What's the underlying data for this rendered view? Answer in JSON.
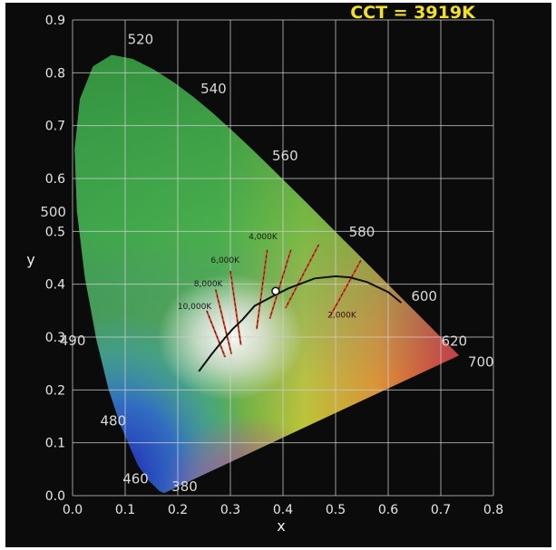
{
  "chart_data": {
    "type": "scatter",
    "title": "CCT = 3919K",
    "xlabel": "x",
    "ylabel": "y",
    "xlim": [
      0.0,
      0.8
    ],
    "ylim": [
      0.0,
      0.9
    ],
    "grid": true,
    "x_ticks": [
      "0.0",
      "0.1",
      "0.2",
      "0.3",
      "0.4",
      "0.5",
      "0.6",
      "0.7",
      "0.8"
    ],
    "y_ticks": [
      "0.0",
      "0.1",
      "0.2",
      "0.3",
      "0.4",
      "0.5",
      "0.6",
      "0.7",
      "0.8",
      "0.9"
    ],
    "spectral_locus_labels": [
      {
        "label": "380",
        "x": 0.175,
        "y": 0.005
      },
      {
        "label": "460",
        "x": 0.144,
        "y": 0.03
      },
      {
        "label": "480",
        "x": 0.091,
        "y": 0.133
      },
      {
        "label": "490",
        "x": 0.045,
        "y": 0.295
      },
      {
        "label": "500",
        "x": 0.008,
        "y": 0.538
      },
      {
        "label": "520",
        "x": 0.074,
        "y": 0.834
      },
      {
        "label": "540",
        "x": 0.23,
        "y": 0.754
      },
      {
        "label": "560",
        "x": 0.373,
        "y": 0.624
      },
      {
        "label": "580",
        "x": 0.512,
        "y": 0.487
      },
      {
        "label": "600",
        "x": 0.627,
        "y": 0.372
      },
      {
        "label": "620",
        "x": 0.691,
        "y": 0.308
      },
      {
        "label": "700",
        "x": 0.735,
        "y": 0.265
      }
    ],
    "planckian_locus": [
      {
        "x": 0.24,
        "y": 0.235
      },
      {
        "x": 0.264,
        "y": 0.267
      },
      {
        "x": 0.281,
        "y": 0.288
      },
      {
        "x": 0.291,
        "y": 0.3
      },
      {
        "x": 0.305,
        "y": 0.316
      },
      {
        "x": 0.323,
        "y": 0.333
      },
      {
        "x": 0.346,
        "y": 0.359
      },
      {
        "x": 0.38,
        "y": 0.377
      },
      {
        "x": 0.41,
        "y": 0.392
      },
      {
        "x": 0.46,
        "y": 0.411
      },
      {
        "x": 0.5,
        "y": 0.415
      },
      {
        "x": 0.527,
        "y": 0.413
      },
      {
        "x": 0.56,
        "y": 0.404
      },
      {
        "x": 0.6,
        "y": 0.385
      },
      {
        "x": 0.625,
        "y": 0.365
      }
    ],
    "isotemperature_labels": [
      {
        "label": "10,000K",
        "x": 0.232,
        "y": 0.353
      },
      {
        "label": "8,000K",
        "x": 0.258,
        "y": 0.396
      },
      {
        "label": "6,000K",
        "x": 0.29,
        "y": 0.441
      },
      {
        "label": "4,000K",
        "x": 0.362,
        "y": 0.485
      },
      {
        "label": "2,000K",
        "x": 0.512,
        "y": 0.337
      }
    ],
    "isotemperature_lines": [
      {
        "label": "10,000K",
        "x1": 0.255,
        "y1": 0.35,
        "x2": 0.29,
        "y2": 0.262
      },
      {
        "label": "8,000K",
        "x1": 0.272,
        "y1": 0.39,
        "x2": 0.302,
        "y2": 0.268
      },
      {
        "label": "6,000K",
        "x1": 0.3,
        "y1": 0.425,
        "x2": 0.32,
        "y2": 0.285
      },
      {
        "label": "4,000K",
        "x1": 0.37,
        "y1": 0.465,
        "x2": 0.35,
        "y2": 0.315
      },
      {
        "label": "",
        "x1": 0.415,
        "y1": 0.465,
        "x2": 0.375,
        "y2": 0.335
      },
      {
        "label": "",
        "x1": 0.468,
        "y1": 0.475,
        "x2": 0.405,
        "y2": 0.355
      },
      {
        "label": "2,000K",
        "x1": 0.548,
        "y1": 0.445,
        "x2": 0.49,
        "y2": 0.34
      }
    ],
    "measured_point": {
      "x": 0.386,
      "y": 0.387
    },
    "cct": "CCT = 3919K"
  }
}
